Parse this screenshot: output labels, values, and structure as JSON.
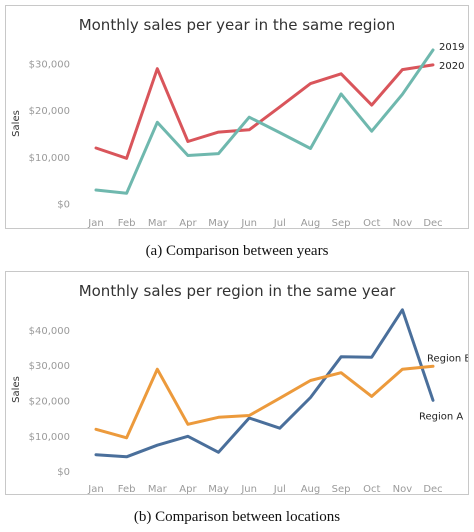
{
  "chart_data": [
    {
      "type": "line",
      "title": "Monthly sales per year in the same region",
      "caption": "(a) Comparison between years",
      "xlabel": "",
      "ylabel": "Sales",
      "categories": [
        "Jan",
        "Feb",
        "Mar",
        "Apr",
        "May",
        "Jun",
        "Jul",
        "Aug",
        "Sep",
        "Oct",
        "Nov",
        "Dec"
      ],
      "y_ticks": [
        0,
        10000,
        20000,
        30000
      ],
      "y_tick_labels": [
        "$0",
        "$10,000",
        "$20,000",
        "$30,000"
      ],
      "ylim": [
        -1500,
        36000
      ],
      "grid": false,
      "series": [
        {
          "name": "2020",
          "color": "#d9555b",
          "values": [
            12000,
            9800,
            29000,
            13400,
            15400,
            15900,
            20800,
            25800,
            27900,
            21200,
            28800,
            29800
          ]
        },
        {
          "name": "2019",
          "color": "#6fb8ae",
          "values": [
            3000,
            2300,
            17500,
            10400,
            10800,
            18600,
            15300,
            11900,
            23600,
            15600,
            23500,
            33000
          ]
        }
      ]
    },
    {
      "type": "line",
      "title": "Monthly sales per region in the same year",
      "caption": "(b) Comparison between locations",
      "xlabel": "",
      "ylabel": "Sales",
      "categories": [
        "Jan",
        "Feb",
        "Mar",
        "Apr",
        "May",
        "Jun",
        "Jul",
        "Aug",
        "Sep",
        "Oct",
        "Nov",
        "Dec"
      ],
      "y_ticks": [
        0,
        10000,
        20000,
        30000,
        40000
      ],
      "y_tick_labels": [
        "$0",
        "$10,000",
        "$20,000",
        "$30,000",
        "$40,000"
      ],
      "ylim": [
        -1500,
        48000
      ],
      "grid": false,
      "series": [
        {
          "name": "Region A",
          "color": "#4a6f9b",
          "values": [
            4800,
            4200,
            7500,
            10000,
            5500,
            15200,
            12300,
            21000,
            32500,
            32400,
            45800,
            20200
          ]
        },
        {
          "name": "Region B",
          "color": "#ec9a3c",
          "values": [
            12000,
            9600,
            29000,
            13400,
            15400,
            15900,
            20800,
            25800,
            28000,
            21300,
            29000,
            29800
          ]
        }
      ]
    }
  ]
}
